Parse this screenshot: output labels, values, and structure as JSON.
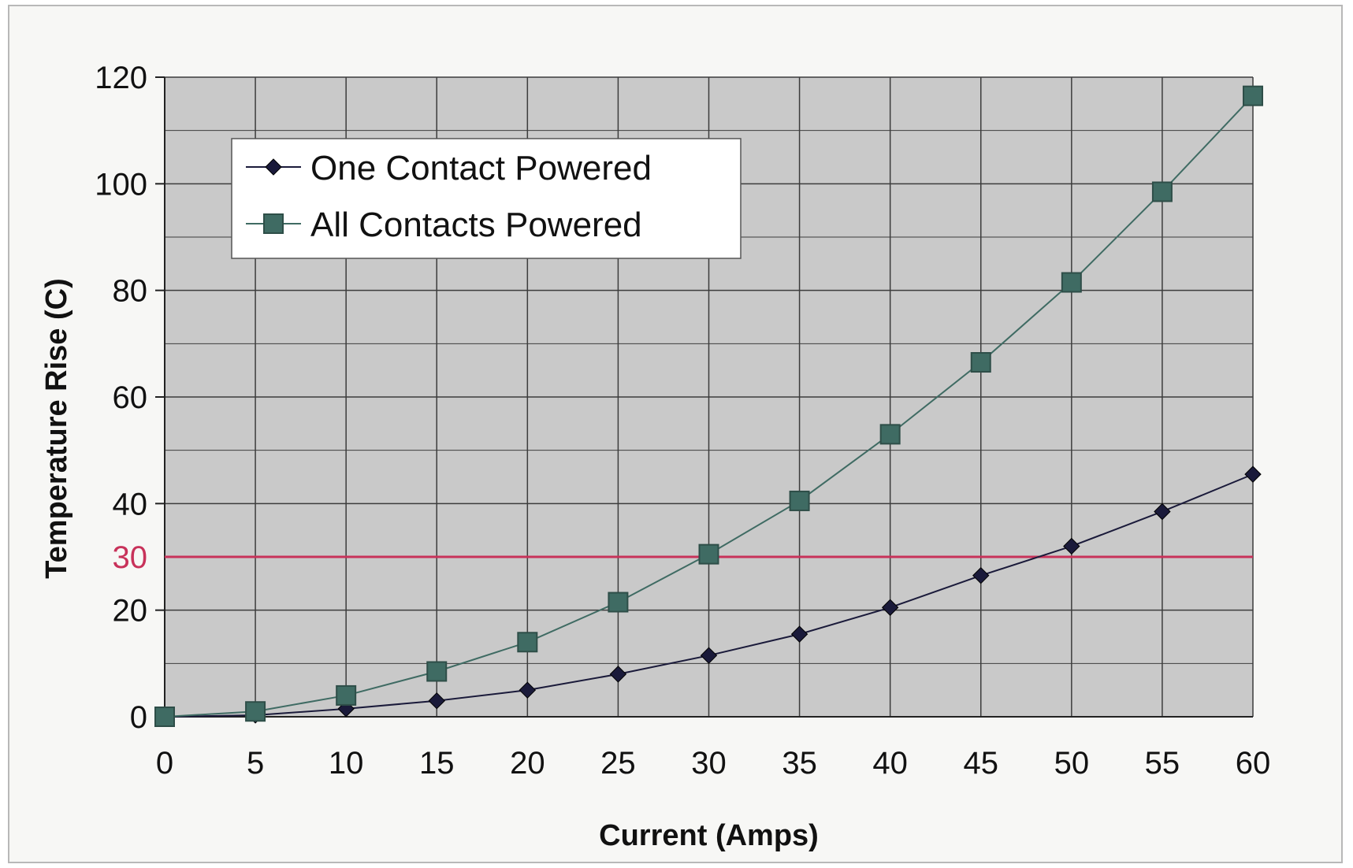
{
  "chart_data": {
    "type": "line",
    "xlabel": "Current (Amps)",
    "ylabel": "Temperature Rise (C)",
    "x": [
      0,
      5,
      10,
      15,
      20,
      25,
      30,
      35,
      40,
      45,
      50,
      55,
      60
    ],
    "xlim": [
      0,
      60
    ],
    "ylim": [
      0,
      120
    ],
    "x_ticks": [
      "0",
      "5",
      "10",
      "15",
      "20",
      "25",
      "30",
      "35",
      "40",
      "45",
      "50",
      "55",
      "60"
    ],
    "y_ticks": [
      "0",
      "20",
      "40",
      "60",
      "80",
      "100",
      "120"
    ],
    "grid": true,
    "legend_position": "top-left",
    "series": [
      {
        "name": "One Contact Powered",
        "marker": "diamond",
        "color": "#1a1a3a",
        "values": [
          0,
          0.3,
          1.5,
          3,
          5,
          8,
          11.5,
          15.5,
          20.5,
          26.5,
          32,
          38.5,
          45.5
        ]
      },
      {
        "name": "All Contacts Powered",
        "marker": "square",
        "color": "#3f6b63",
        "values": [
          0,
          1,
          4,
          8.5,
          14,
          21.5,
          30.5,
          40.5,
          53,
          66.5,
          81.5,
          98.5,
          116.5
        ]
      }
    ],
    "annotations": [
      {
        "type": "hline",
        "y": 30,
        "label": "30",
        "color": "#c8325a"
      }
    ],
    "colors": {
      "plot_background": "#c9c9c9",
      "grid": "#3c3c3c",
      "reference_line": "#c8325a"
    }
  }
}
